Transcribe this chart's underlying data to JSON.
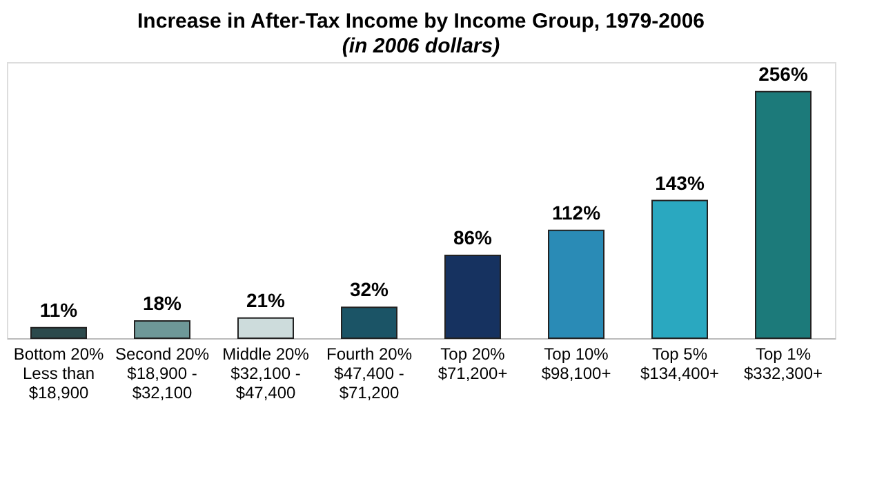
{
  "chart_data": {
    "type": "bar",
    "title": "Increase in After-Tax Income by Income Group, 1979-2006",
    "subtitle": "(in 2006 dollars)",
    "categories": [
      "Bottom 20%\nLess than\n$18,900",
      "Second 20%\n$18,900 -\n$32,100",
      "Middle 20%\n$32,100 -\n$47,400",
      "Fourth 20%\n$47,400 -\n$71,200",
      "Top 20%\n$71,200+",
      "Top 10%\n$98,100+",
      "Top 5%\n$134,400+",
      "Top 1%\n$332,300+"
    ],
    "values": [
      11,
      18,
      21,
      32,
      86,
      112,
      143,
      256
    ],
    "value_labels": [
      "11%",
      "18%",
      "21%",
      "32%",
      "86%",
      "112%",
      "143%",
      "256%"
    ],
    "colors": [
      "#2c4a4c",
      "#6e9898",
      "#cddcdc",
      "#1b5466",
      "#163260",
      "#2a8bb6",
      "#2aa8c0",
      "#1c7a7a"
    ]
  }
}
